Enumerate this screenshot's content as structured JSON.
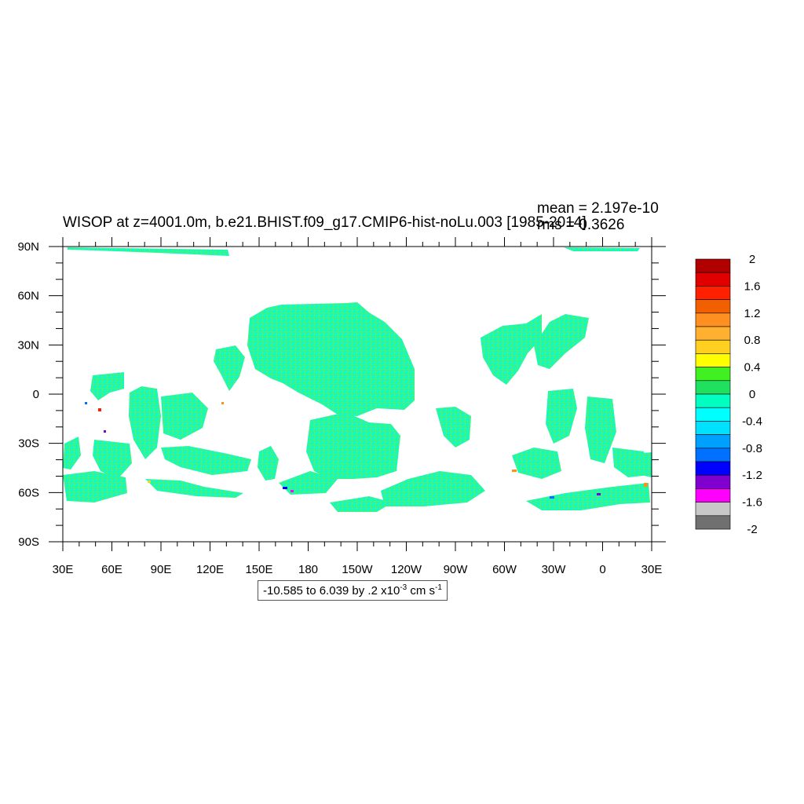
{
  "header": {
    "title": "WISOP at z=4001.0m, b.e21.BHIST.f09_g17.CMIP6-hist-noLu.003 [1985-2014]",
    "mean": "mean = 2.197e-10",
    "rms": "rms = 0.3626"
  },
  "contour_info": {
    "range_text": "-10.585 to 6.039 by .2 x10",
    "exponent": "-3",
    "units": " cm s",
    "units_exponent": "-1"
  },
  "chart_data": {
    "type": "heatmap",
    "projection": "cylindrical equidistant",
    "x_ticks": [
      "30E",
      "60E",
      "90E",
      "120E",
      "150E",
      "180",
      "150W",
      "120W",
      "90W",
      "60W",
      "30W",
      "0",
      "30E"
    ],
    "y_ticks": [
      "90N",
      "60N",
      "30N",
      "0",
      "30S",
      "60S",
      "90S"
    ],
    "xlim": [
      30,
      390
    ],
    "ylim": [
      -90,
      90
    ],
    "colorbar": {
      "labels": [
        "2",
        "1.6",
        "1.2",
        "0.8",
        "0.4",
        "0",
        "-0.4",
        "-0.8",
        "-1.2",
        "-1.6",
        "-2"
      ],
      "colors": [
        "#b00000",
        "#e00000",
        "#ff2000",
        "#f06000",
        "#ff9020",
        "#ffb030",
        "#ffd020",
        "#ffff00",
        "#40f020",
        "#20e060",
        "#00ffc0",
        "#00ffff",
        "#00e0ff",
        "#00a0ff",
        "#0070ff",
        "#0000ff",
        "#8000d0",
        "#ff00ff",
        "#c8c8c8",
        "#707070"
      ]
    },
    "dominant_value_range": [
      -0.4,
      0.4
    ],
    "grid": false
  }
}
